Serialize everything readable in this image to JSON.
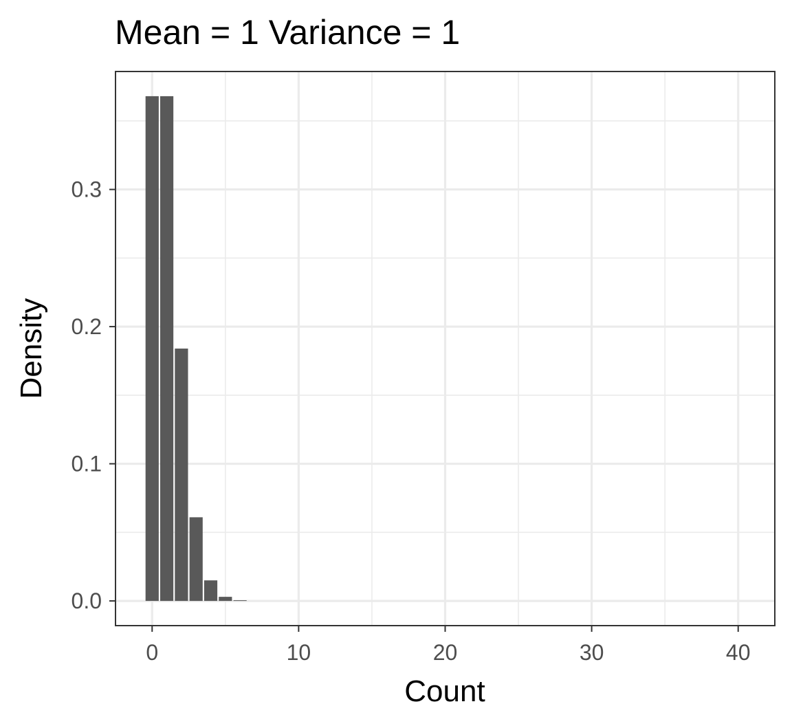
{
  "chart_data": {
    "type": "bar",
    "title": "Mean = 1 Variance = 1",
    "xlabel": "Count",
    "ylabel": "Density",
    "x": [
      0,
      1,
      2,
      3,
      4,
      5,
      6
    ],
    "values": [
      0.368,
      0.368,
      0.184,
      0.061,
      0.015,
      0.003,
      0.0005
    ],
    "xlim": [
      -2.5,
      42.5
    ],
    "ylim": [
      -0.018,
      0.386
    ],
    "x_ticks": [
      0,
      10,
      20,
      30,
      40
    ],
    "x_tick_labels": [
      "0",
      "10",
      "20",
      "30",
      "40"
    ],
    "y_ticks": [
      0.0,
      0.1,
      0.2,
      0.3
    ],
    "y_tick_labels": [
      "0.0",
      "0.1",
      "0.2",
      "0.3"
    ],
    "grid": true,
    "bar_color": "#595959",
    "grid_color": "#ebebeb",
    "border_color": "#333333"
  }
}
